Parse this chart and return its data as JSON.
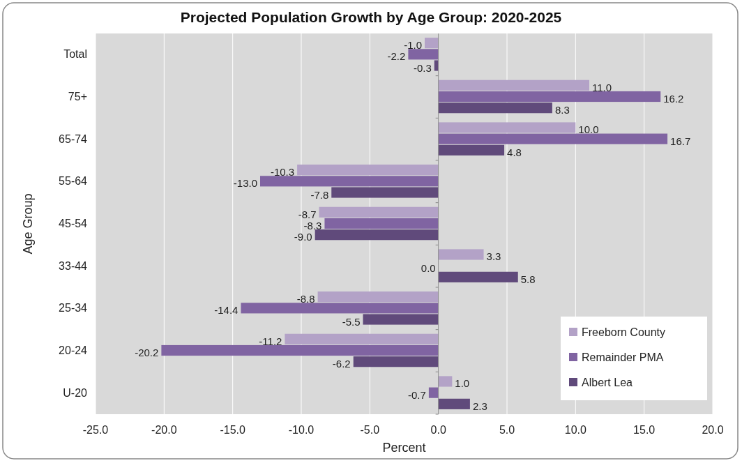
{
  "chart_data": {
    "type": "bar",
    "orientation": "horizontal",
    "title": "Projected Population Growth by Age Group:  2020-2025",
    "xlabel": "Percent",
    "ylabel": "Age Group",
    "categories": [
      "Total",
      "75+",
      "65-74",
      "55-64",
      "45-54",
      "33-44",
      "25-34",
      "20-24",
      "U-20"
    ],
    "series": [
      {
        "name": "Freeborn County",
        "color": "#b3a2c7",
        "values": [
          -1.0,
          11.0,
          10.0,
          -10.3,
          -8.7,
          3.3,
          -8.8,
          -11.2,
          1.0
        ],
        "value_labels": [
          "-1.0",
          "11.0",
          "10.0",
          "-10.3",
          "-8.7",
          "3.3",
          "-8.8",
          "-11.2",
          "1.0"
        ]
      },
      {
        "name": "Remainder PMA",
        "color": "#8064a2",
        "values": [
          -2.2,
          16.2,
          16.7,
          -13.0,
          -8.3,
          0.0,
          -14.4,
          -20.2,
          -0.7
        ],
        "value_labels": [
          "-2.2",
          "16.2",
          "16.7",
          "-13.0",
          "-8.3",
          "0.0",
          "-14.4",
          "-20.2",
          "-0.7"
        ]
      },
      {
        "name": "Albert Lea",
        "color": "#604a7b",
        "values": [
          -0.3,
          8.3,
          4.8,
          -7.8,
          -9.0,
          5.8,
          -5.5,
          -6.2,
          2.3
        ],
        "value_labels": [
          "-0.3",
          "8.3",
          "4.8",
          "-7.8",
          "-9.0",
          "5.8",
          "-5.5",
          "-6.2",
          "2.3"
        ]
      }
    ],
    "xlim": [
      -25,
      20
    ],
    "xticks": [
      {
        "value": -25,
        "label": "-25.0"
      },
      {
        "value": -20,
        "label": "-20.0"
      },
      {
        "value": -15,
        "label": "-15.0"
      },
      {
        "value": -10,
        "label": "-10.0"
      },
      {
        "value": -5,
        "label": "-5.0"
      },
      {
        "value": 0,
        "label": "0.0"
      },
      {
        "value": 5,
        "label": "5.0"
      },
      {
        "value": 10,
        "label": "10.0"
      },
      {
        "value": 15,
        "label": "15.0"
      },
      {
        "value": 20,
        "label": "20.0"
      }
    ],
    "grid": "x",
    "legend": "bottom right"
  }
}
